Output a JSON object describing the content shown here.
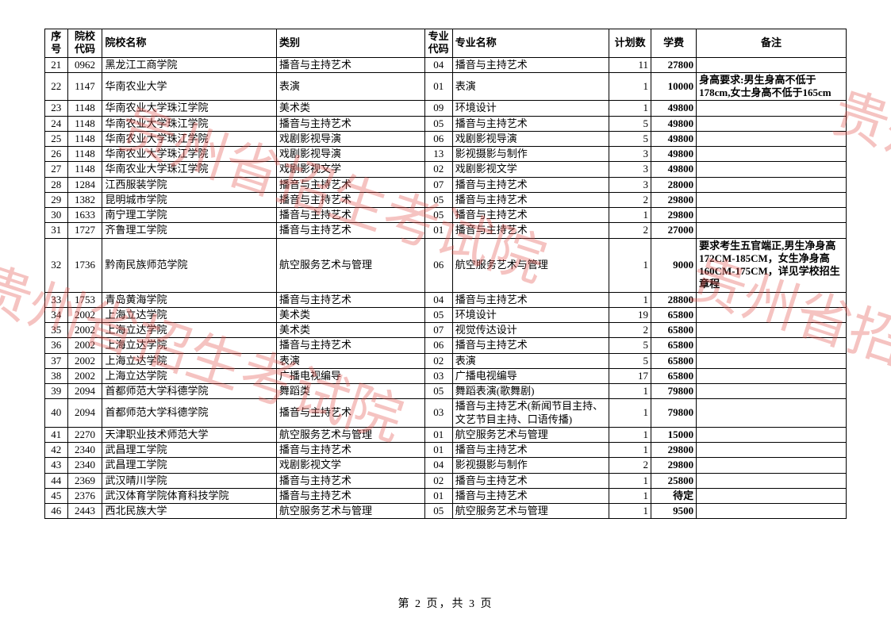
{
  "watermark_text": "贵州省招生考试院",
  "watermark_color": "#e2544e",
  "footer": "第 2 页，共 3 页",
  "columns": [
    {
      "key": "seq",
      "label": "序号",
      "class": "c-seq"
    },
    {
      "key": "code",
      "label": "院校代码",
      "class": "c-code"
    },
    {
      "key": "name",
      "label": "院校名称",
      "class": "c-name"
    },
    {
      "key": "cat",
      "label": "类别",
      "class": "c-cat"
    },
    {
      "key": "mcode",
      "label": "专业代码",
      "class": "c-mcode"
    },
    {
      "key": "major",
      "label": "专业名称",
      "class": "c-major"
    },
    {
      "key": "plan",
      "label": "计划数",
      "class": "c-plan"
    },
    {
      "key": "fee",
      "label": "学费",
      "class": "c-fee"
    },
    {
      "key": "note",
      "label": "备注",
      "class": "c-note"
    }
  ],
  "rows": [
    {
      "seq": "21",
      "code": "0962",
      "name": "黑龙江工商学院",
      "cat": "播音与主持艺术",
      "mcode": "04",
      "major": "播音与主持艺术",
      "plan": "11",
      "fee": "27800",
      "note": ""
    },
    {
      "seq": "22",
      "code": "1147",
      "name": "华南农业大学",
      "cat": "表演",
      "mcode": "01",
      "major": "表演",
      "plan": "1",
      "fee": "10000",
      "note": "身高要求:男生身高不低于178cm,女士身高不低于165cm"
    },
    {
      "seq": "23",
      "code": "1148",
      "name": "华南农业大学珠江学院",
      "cat": "美术类",
      "mcode": "09",
      "major": "环境设计",
      "plan": "1",
      "fee": "49800",
      "note": ""
    },
    {
      "seq": "24",
      "code": "1148",
      "name": "华南农业大学珠江学院",
      "cat": "播音与主持艺术",
      "mcode": "05",
      "major": "播音与主持艺术",
      "plan": "5",
      "fee": "49800",
      "note": ""
    },
    {
      "seq": "25",
      "code": "1148",
      "name": "华南农业大学珠江学院",
      "cat": "戏剧影视导演",
      "mcode": "06",
      "major": "戏剧影视导演",
      "plan": "5",
      "fee": "49800",
      "note": ""
    },
    {
      "seq": "26",
      "code": "1148",
      "name": "华南农业大学珠江学院",
      "cat": "戏剧影视导演",
      "mcode": "13",
      "major": "影视摄影与制作",
      "plan": "3",
      "fee": "49800",
      "note": ""
    },
    {
      "seq": "27",
      "code": "1148",
      "name": "华南农业大学珠江学院",
      "cat": "戏剧影视文学",
      "mcode": "02",
      "major": "戏剧影视文学",
      "plan": "3",
      "fee": "49800",
      "note": ""
    },
    {
      "seq": "28",
      "code": "1284",
      "name": "江西服装学院",
      "cat": "播音与主持艺术",
      "mcode": "07",
      "major": "播音与主持艺术",
      "plan": "3",
      "fee": "28000",
      "note": ""
    },
    {
      "seq": "29",
      "code": "1382",
      "name": "昆明城市学院",
      "cat": "播音与主持艺术",
      "mcode": "05",
      "major": "播音与主持艺术",
      "plan": "2",
      "fee": "29800",
      "note": ""
    },
    {
      "seq": "30",
      "code": "1633",
      "name": "南宁理工学院",
      "cat": "播音与主持艺术",
      "mcode": "05",
      "major": "播音与主持艺术",
      "plan": "1",
      "fee": "29800",
      "note": ""
    },
    {
      "seq": "31",
      "code": "1727",
      "name": "齐鲁理工学院",
      "cat": "播音与主持艺术",
      "mcode": "01",
      "major": "播音与主持艺术",
      "plan": "2",
      "fee": "27000",
      "note": ""
    },
    {
      "seq": "32",
      "code": "1736",
      "name": "黔南民族师范学院",
      "cat": "航空服务艺术与管理",
      "mcode": "06",
      "major": "航空服务艺术与管理",
      "plan": "1",
      "fee": "9000",
      "note": "要求考生五官端正,男生净身高172CM-185CM，女生净身高160CM-175CM，详见学校招生章程"
    },
    {
      "seq": "33",
      "code": "1753",
      "name": "青岛黄海学院",
      "cat": "播音与主持艺术",
      "mcode": "04",
      "major": "播音与主持艺术",
      "plan": "1",
      "fee": "28800",
      "note": ""
    },
    {
      "seq": "34",
      "code": "2002",
      "name": "上海立达学院",
      "cat": "美术类",
      "mcode": "05",
      "major": "环境设计",
      "plan": "19",
      "fee": "65800",
      "note": ""
    },
    {
      "seq": "35",
      "code": "2002",
      "name": "上海立达学院",
      "cat": "美术类",
      "mcode": "07",
      "major": "视觉传达设计",
      "plan": "2",
      "fee": "65800",
      "note": ""
    },
    {
      "seq": "36",
      "code": "2002",
      "name": "上海立达学院",
      "cat": "播音与主持艺术",
      "mcode": "06",
      "major": "播音与主持艺术",
      "plan": "5",
      "fee": "65800",
      "note": ""
    },
    {
      "seq": "37",
      "code": "2002",
      "name": "上海立达学院",
      "cat": "表演",
      "mcode": "02",
      "major": "表演",
      "plan": "5",
      "fee": "65800",
      "note": ""
    },
    {
      "seq": "38",
      "code": "2002",
      "name": "上海立达学院",
      "cat": "广播电视编导",
      "mcode": "03",
      "major": "广播电视编导",
      "plan": "17",
      "fee": "65800",
      "note": ""
    },
    {
      "seq": "39",
      "code": "2094",
      "name": "首都师范大学科德学院",
      "cat": "舞蹈类",
      "mcode": "05",
      "major": "舞蹈表演(歌舞剧)",
      "plan": "1",
      "fee": "79800",
      "note": ""
    },
    {
      "seq": "40",
      "code": "2094",
      "name": "首都师范大学科德学院",
      "cat": "播音与主持艺术",
      "mcode": "03",
      "major": "播音与主持艺术(新闻节目主持、文艺节目主持、口语传播)",
      "plan": "1",
      "fee": "79800",
      "note": ""
    },
    {
      "seq": "41",
      "code": "2270",
      "name": "天津职业技术师范大学",
      "cat": "航空服务艺术与管理",
      "mcode": "01",
      "major": "航空服务艺术与管理",
      "plan": "1",
      "fee": "15000",
      "note": ""
    },
    {
      "seq": "42",
      "code": "2340",
      "name": "武昌理工学院",
      "cat": "播音与主持艺术",
      "mcode": "01",
      "major": "播音与主持艺术",
      "plan": "1",
      "fee": "29800",
      "note": ""
    },
    {
      "seq": "43",
      "code": "2340",
      "name": "武昌理工学院",
      "cat": "戏剧影视文学",
      "mcode": "04",
      "major": "影视摄影与制作",
      "plan": "2",
      "fee": "29800",
      "note": ""
    },
    {
      "seq": "44",
      "code": "2369",
      "name": "武汉晴川学院",
      "cat": "播音与主持艺术",
      "mcode": "02",
      "major": "播音与主持艺术",
      "plan": "1",
      "fee": "25800",
      "note": ""
    },
    {
      "seq": "45",
      "code": "2376",
      "name": "武汉体育学院体育科技学院",
      "cat": "播音与主持艺术",
      "mcode": "01",
      "major": "播音与主持艺术",
      "plan": "1",
      "fee": "待定",
      "note": ""
    },
    {
      "seq": "46",
      "code": "2443",
      "name": "西北民族大学",
      "cat": "航空服务艺术与管理",
      "mcode": "05",
      "major": "航空服务艺术与管理",
      "plan": "1",
      "fee": "9500",
      "note": ""
    }
  ]
}
